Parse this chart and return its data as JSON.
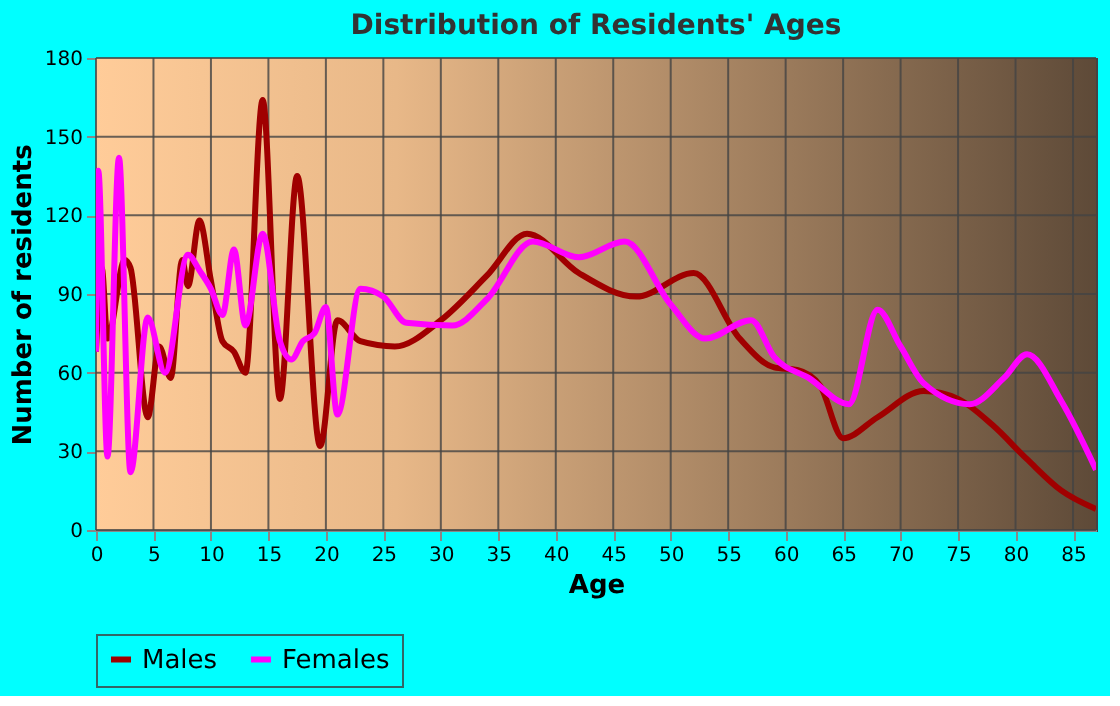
{
  "chart_data": {
    "type": "line",
    "title": "Distribution of Residents' Ages",
    "xlabel": "Age",
    "ylabel": "Number of residents",
    "xlim": [
      0,
      87
    ],
    "xticks": [
      0,
      5,
      10,
      15,
      20,
      25,
      30,
      35,
      40,
      45,
      50,
      55,
      60,
      65,
      70,
      75,
      80,
      85
    ],
    "ylim": [
      0,
      180
    ],
    "yticks": [
      0,
      30,
      60,
      90,
      120,
      150,
      180
    ],
    "grid": true,
    "legend": "bottom",
    "series": [
      {
        "name": "Males",
        "color": "#a00000",
        "x": [
          0,
          0.5,
          1,
          2.5,
          3,
          4.5,
          5.5,
          6.5,
          7.5,
          8,
          9,
          10,
          11,
          12,
          13,
          14.5,
          16,
          17.5,
          19.5,
          21,
          23,
          26,
          30,
          34,
          37.5,
          42,
          47,
          52,
          56,
          59,
          61,
          63,
          65,
          68,
          72,
          75,
          78,
          81,
          84,
          87
        ],
        "values": [
          68,
          100,
          73,
          103,
          100,
          43,
          70,
          58,
          103,
          93,
          118,
          95,
          72,
          68,
          60,
          164,
          50,
          135,
          32,
          80,
          72,
          70,
          80,
          97,
          113,
          98,
          89,
          98,
          73,
          62,
          61,
          55,
          35,
          43,
          53,
          50,
          40,
          27,
          15,
          8
        ]
      },
      {
        "name": "Females",
        "color": "#ff00ff",
        "x": [
          0,
          0.2,
          1,
          2,
          3,
          4.5,
          6,
          8,
          9,
          10,
          11,
          12,
          13,
          14.5,
          16,
          17,
          18,
          19,
          20,
          21,
          23,
          25,
          27,
          31,
          34,
          38,
          42,
          46,
          50,
          53,
          57,
          59,
          62,
          65.5,
          68,
          70,
          72,
          76,
          79,
          81,
          84,
          87
        ],
        "values": [
          68,
          137,
          28,
          142,
          22,
          81,
          60,
          105,
          99,
          92,
          82,
          107,
          78,
          113,
          72,
          65,
          72,
          75,
          85,
          44,
          92,
          89,
          79,
          78,
          88,
          110,
          104,
          110,
          86,
          73,
          80,
          66,
          58,
          48,
          84,
          70,
          56,
          48,
          58,
          67,
          49,
          23
        ]
      }
    ]
  }
}
